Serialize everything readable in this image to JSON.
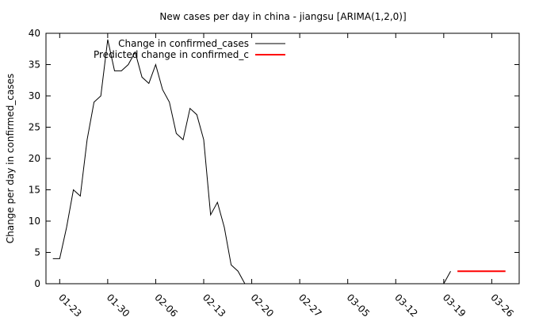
{
  "chart_data": {
    "type": "line",
    "title": "New cases per day in china - jiangsu [ARIMA(1,2,0)]",
    "xlabel": "",
    "ylabel": "Change per day in confirmed_cases",
    "ylim": [
      0,
      40
    ],
    "yticks": [
      0,
      5,
      10,
      15,
      20,
      25,
      30,
      35,
      40
    ],
    "xlim": [
      "2020-01-21",
      "2020-03-30"
    ],
    "xticks": [
      {
        "date": "2020-01-23",
        "label": "01-23"
      },
      {
        "date": "2020-01-30",
        "label": "01-30"
      },
      {
        "date": "2020-02-06",
        "label": "02-06"
      },
      {
        "date": "2020-02-13",
        "label": "02-13"
      },
      {
        "date": "2020-02-20",
        "label": "02-20"
      },
      {
        "date": "2020-02-27",
        "label": "02-27"
      },
      {
        "date": "2020-03-05",
        "label": "03-05"
      },
      {
        "date": "2020-03-12",
        "label": "03-12"
      },
      {
        "date": "2020-03-19",
        "label": "03-19"
      },
      {
        "date": "2020-03-26",
        "label": "03-26"
      }
    ],
    "grid": false,
    "legend_position": "top-left",
    "series": [
      {
        "name": "Change in confirmed_cases",
        "color": "#000000",
        "points": [
          [
            "2020-01-22",
            4
          ],
          [
            "2020-01-23",
            4
          ],
          [
            "2020-01-24",
            9
          ],
          [
            "2020-01-25",
            15
          ],
          [
            "2020-01-26",
            14
          ],
          [
            "2020-01-27",
            23
          ],
          [
            "2020-01-28",
            29
          ],
          [
            "2020-01-29",
            30
          ],
          [
            "2020-01-30",
            39
          ],
          [
            "2020-01-31",
            34
          ],
          [
            "2020-02-01",
            34
          ],
          [
            "2020-02-02",
            35
          ],
          [
            "2020-02-03",
            37
          ],
          [
            "2020-02-04",
            33
          ],
          [
            "2020-02-05",
            32
          ],
          [
            "2020-02-06",
            35
          ],
          [
            "2020-02-07",
            31
          ],
          [
            "2020-02-08",
            29
          ],
          [
            "2020-02-09",
            24
          ],
          [
            "2020-02-10",
            23
          ],
          [
            "2020-02-11",
            28
          ],
          [
            "2020-02-12",
            27
          ],
          [
            "2020-02-13",
            23
          ],
          [
            "2020-02-14",
            11
          ],
          [
            "2020-02-15",
            13
          ],
          [
            "2020-02-16",
            9
          ],
          [
            "2020-02-17",
            3
          ],
          [
            "2020-02-18",
            2
          ],
          [
            "2020-02-19",
            0
          ],
          [
            "2020-02-20",
            0
          ],
          [
            "2020-02-21",
            0
          ],
          [
            "2020-02-22",
            0
          ],
          [
            "2020-02-23",
            0
          ],
          [
            "2020-02-24",
            0
          ],
          [
            "2020-02-25",
            0
          ],
          [
            "2020-02-26",
            0
          ],
          [
            "2020-02-27",
            0
          ],
          [
            "2020-02-28",
            0
          ],
          [
            "2020-02-29",
            0
          ],
          [
            "2020-03-01",
            0
          ],
          [
            "2020-03-02",
            0
          ],
          [
            "2020-03-03",
            0
          ],
          [
            "2020-03-04",
            0
          ],
          [
            "2020-03-05",
            0
          ],
          [
            "2020-03-06",
            0
          ],
          [
            "2020-03-07",
            0
          ],
          [
            "2020-03-08",
            0
          ],
          [
            "2020-03-09",
            0
          ],
          [
            "2020-03-10",
            0
          ],
          [
            "2020-03-11",
            0
          ],
          [
            "2020-03-12",
            0
          ],
          [
            "2020-03-13",
            0
          ],
          [
            "2020-03-14",
            0
          ],
          [
            "2020-03-15",
            0
          ],
          [
            "2020-03-16",
            0
          ],
          [
            "2020-03-17",
            0
          ],
          [
            "2020-03-18",
            0
          ],
          [
            "2020-03-19",
            0
          ],
          [
            "2020-03-20",
            2
          ]
        ]
      },
      {
        "name": "Predicted change in confirmed_c",
        "color": "#ff0000",
        "points": [
          [
            "2020-03-21",
            2
          ],
          [
            "2020-03-22",
            2
          ],
          [
            "2020-03-23",
            2
          ],
          [
            "2020-03-24",
            2
          ],
          [
            "2020-03-25",
            2
          ],
          [
            "2020-03-26",
            2
          ],
          [
            "2020-03-27",
            2
          ],
          [
            "2020-03-28",
            2
          ]
        ]
      }
    ]
  }
}
